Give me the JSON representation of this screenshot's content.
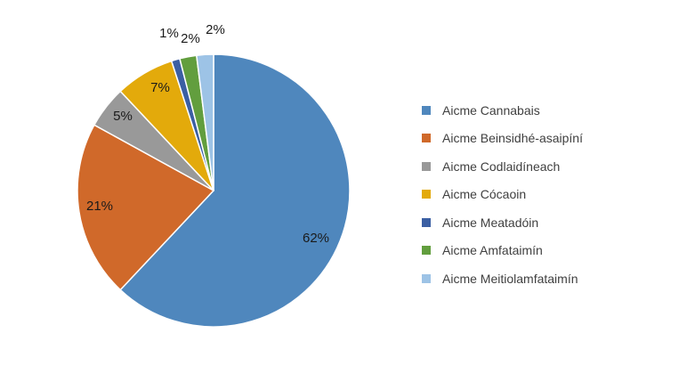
{
  "chart_data": {
    "type": "pie",
    "title": "",
    "categories": [
      "Aicme Cannabais",
      "Aicme Beinsidhé-asaipíní",
      "Aicme Codlaidíneach",
      "Aicme Cócaoin",
      "Aicme Meatadóin",
      "Aicme Amfataimín",
      "Aicme Meitiolamfataimín"
    ],
    "values": [
      62,
      21,
      5,
      7,
      1,
      2,
      2
    ],
    "data_labels": [
      "62%",
      "21%",
      "5%",
      "7%",
      "1%",
      "2%",
      "2%"
    ],
    "colors": [
      "#4f87bd",
      "#d0692a",
      "#999999",
      "#e3aa0b",
      "#3b5fa3",
      "#629e3e",
      "#9dc3e6"
    ],
    "start": "12 o'clock, clockwise",
    "legend_position": "right",
    "legend": [
      {
        "label": "Aicme Cannabais",
        "color": "#4f87bd"
      },
      {
        "label": "Aicme Beinsidhé-asaipíní",
        "color": "#d0692a"
      },
      {
        "label": "Aicme Codlaidíneach",
        "color": "#999999"
      },
      {
        "label": "Aicme Cócaoin",
        "color": "#e3aa0b"
      },
      {
        "label": "Aicme Meatadóin",
        "color": "#3b5fa3"
      },
      {
        "label": "Aicme Amfataimín",
        "color": "#629e3e"
      },
      {
        "label": "Aicme Meitiolamfataimín",
        "color": "#9dc3e6"
      }
    ]
  }
}
